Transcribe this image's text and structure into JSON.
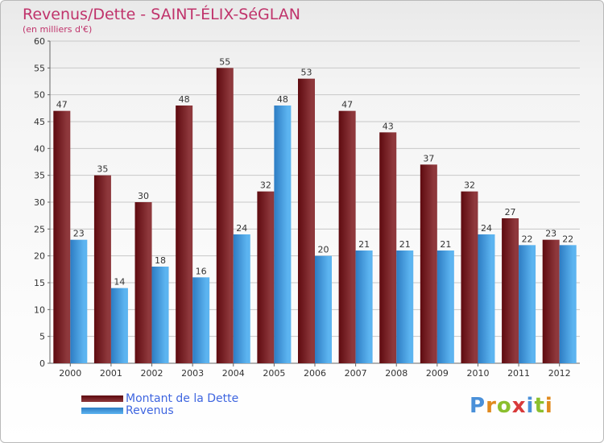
{
  "title": "Revenus/Dette - SAINT-ÉLIX-SéGLAN",
  "subtitle": "(en milliers d'€)",
  "logo": "Proxiti",
  "colors": {
    "title": "#c0336b",
    "legend_text": "#3f66e0",
    "dette_dark": "#5e0a0f",
    "dette_light": "#8e383c",
    "revenus_dark": "#2d7cc3",
    "revenus_light": "#5cb4f0"
  },
  "chart_data": {
    "type": "bar",
    "title": "Revenus/Dette - SAINT-ÉLIX-SéGLAN",
    "ylabel": "(en milliers d'€)",
    "xlabel": "",
    "categories": [
      "2000",
      "2001",
      "2002",
      "2003",
      "2004",
      "2005",
      "2006",
      "2007",
      "2008",
      "2009",
      "2010",
      "2011",
      "2012"
    ],
    "series": [
      {
        "name": "Montant de la Dette",
        "values": [
          47,
          35,
          30,
          48,
          55,
          32,
          53,
          47,
          43,
          37,
          32,
          27,
          23
        ]
      },
      {
        "name": "Revenus",
        "values": [
          23,
          14,
          18,
          16,
          24,
          48,
          20,
          21,
          21,
          21,
          24,
          22,
          22
        ]
      }
    ],
    "ylim": [
      0,
      60
    ],
    "yticks": [
      0,
      5,
      10,
      15,
      20,
      25,
      30,
      35,
      40,
      45,
      50,
      55,
      60
    ],
    "grid": true,
    "legend": "bottom-left"
  }
}
